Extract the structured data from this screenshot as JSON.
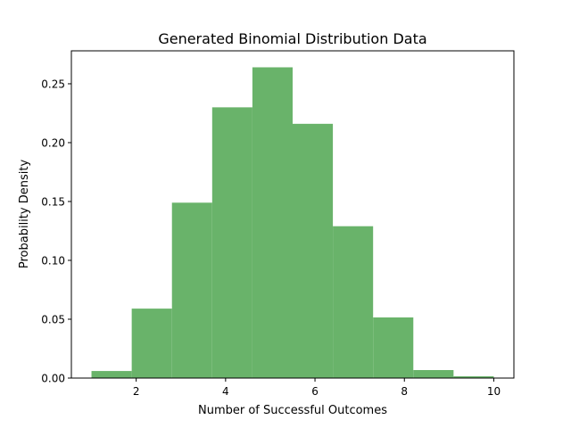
{
  "chart_data": {
    "type": "bar",
    "title": "Generated Binomial Distribution Data",
    "xlabel": "Number of Successful Outcomes",
    "ylabel": "Probability Density",
    "bin_edges": [
      1.0,
      1.9,
      2.8,
      3.7,
      4.6,
      5.5,
      6.4,
      7.3,
      8.2,
      9.1,
      10.0
    ],
    "values": [
      0.006,
      0.059,
      0.149,
      0.23,
      0.264,
      0.216,
      0.129,
      0.0515,
      0.0068,
      0.0015
    ],
    "xlim": [
      0.55,
      10.45
    ],
    "ylim": [
      0,
      0.278
    ],
    "xticks": [
      2,
      4,
      6,
      8,
      10
    ],
    "xtick_labels": [
      "2",
      "4",
      "6",
      "8",
      "10"
    ],
    "yticks": [
      0,
      0.05,
      0.1,
      0.15,
      0.2,
      0.25
    ],
    "ytick_labels": [
      "0.00",
      "0.05",
      "0.10",
      "0.15",
      "0.20",
      "0.25"
    ],
    "grid": false,
    "bar_color": "#69b36a"
  }
}
